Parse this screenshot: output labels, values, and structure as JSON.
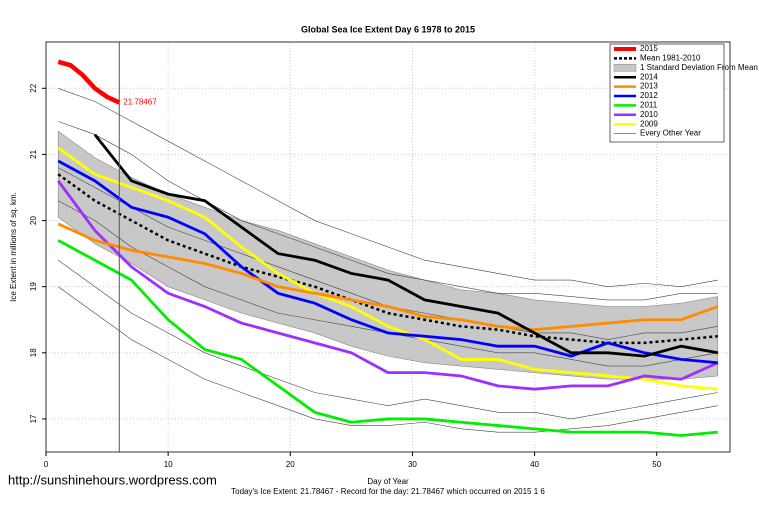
{
  "chart_data": {
    "type": "line",
    "title": "Global Sea Ice Extent Day 6 1978 to 2015",
    "x_label": "Day of Year",
    "y_label": "Ice Extent in millions of sq. km.",
    "footer": "Today's Ice Extent: 21.78467  - Record for the day: 21.78467 which occurred on 2015 1 6",
    "watermark": "http://sunshinehours.wordpress.com",
    "xlim": [
      0,
      56
    ],
    "ylim": [
      16.5,
      22.7
    ],
    "xticks": [
      0,
      10,
      20,
      30,
      40,
      50
    ],
    "yticks": [
      17,
      18,
      19,
      20,
      21,
      22
    ],
    "grid": true,
    "legend": "top-right",
    "vline": 6,
    "x": [
      1,
      4,
      7,
      10,
      13,
      16,
      19,
      22,
      25,
      28,
      31,
      34,
      37,
      40,
      43,
      46,
      49,
      52,
      55
    ],
    "mean": {
      "name": "Mean 1981-2010",
      "color": "#000000",
      "values": [
        20.7,
        20.3,
        20.0,
        19.7,
        19.5,
        19.3,
        19.15,
        19.0,
        18.8,
        18.6,
        18.5,
        18.4,
        18.35,
        18.25,
        18.2,
        18.15,
        18.15,
        18.2,
        18.25
      ]
    },
    "band": {
      "name": "1 Standard Deviation From Mean",
      "color": "#c8c8c8",
      "upper": [
        21.35,
        20.95,
        20.65,
        20.4,
        20.2,
        20.0,
        19.85,
        19.65,
        19.45,
        19.25,
        19.1,
        18.95,
        18.9,
        18.8,
        18.75,
        18.7,
        18.7,
        18.75,
        18.85
      ],
      "lower": [
        20.05,
        19.65,
        19.35,
        19.0,
        18.8,
        18.6,
        18.45,
        18.3,
        18.1,
        17.95,
        17.85,
        17.8,
        17.75,
        17.7,
        17.65,
        17.6,
        17.6,
        17.6,
        17.65
      ]
    },
    "others": {
      "name": "Every Other Year",
      "color": "#444444",
      "lines": [
        [
          22.0,
          21.8,
          21.5,
          21.2,
          20.9,
          20.6,
          20.3,
          20.0,
          19.8,
          19.6,
          19.4,
          19.3,
          19.2,
          19.1,
          19.1,
          19.0,
          19.05,
          19.0,
          19.1
        ],
        [
          21.5,
          21.3,
          21.0,
          20.6,
          20.3,
          20.0,
          19.8,
          19.6,
          19.4,
          19.2,
          19.1,
          19.0,
          18.9,
          18.9,
          18.85,
          18.8,
          18.8,
          18.9,
          18.9
        ],
        [
          19.4,
          19.0,
          18.6,
          18.3,
          18.0,
          17.8,
          17.6,
          17.4,
          17.3,
          17.2,
          17.3,
          17.2,
          17.1,
          17.1,
          17.0,
          17.1,
          17.2,
          17.3,
          17.4
        ],
        [
          20.3,
          20.0,
          19.6,
          19.3,
          19.0,
          18.8,
          18.6,
          18.5,
          18.4,
          18.3,
          18.2,
          18.1,
          18.0,
          18.0,
          17.9,
          17.8,
          17.8,
          17.9,
          18.0
        ],
        [
          20.8,
          20.5,
          20.2,
          19.9,
          19.7,
          19.5,
          19.3,
          19.1,
          18.9,
          18.7,
          18.6,
          18.5,
          18.4,
          18.3,
          18.3,
          18.2,
          18.3,
          18.3,
          18.4
        ],
        [
          19.0,
          18.6,
          18.2,
          17.9,
          17.6,
          17.4,
          17.2,
          17.0,
          16.9,
          16.9,
          16.95,
          16.85,
          16.8,
          16.8,
          16.85,
          16.9,
          17.0,
          17.1,
          17.2
        ]
      ]
    },
    "series": [
      {
        "name": "2015",
        "color": "#ff0000",
        "x": [
          1,
          2,
          3,
          4,
          5,
          6
        ],
        "values": [
          22.4,
          22.35,
          22.2,
          22.0,
          21.87,
          21.78467
        ]
      },
      {
        "name": "2014",
        "color": "#000000",
        "values": [
          null,
          21.3,
          20.6,
          20.4,
          20.3,
          19.9,
          19.5,
          19.4,
          19.2,
          19.1,
          18.8,
          18.7,
          18.6,
          18.3,
          18.0,
          18.0,
          17.95,
          18.1,
          18.0
        ]
      },
      {
        "name": "2013",
        "color": "#ff8c00",
        "values": [
          19.95,
          19.7,
          19.55,
          19.45,
          19.35,
          19.2,
          19.0,
          18.9,
          18.8,
          18.7,
          18.55,
          18.5,
          18.4,
          18.35,
          18.4,
          18.45,
          18.5,
          18.5,
          18.7
        ]
      },
      {
        "name": "2012",
        "color": "#0000ff",
        "values": [
          20.9,
          20.6,
          20.2,
          20.05,
          19.8,
          19.3,
          18.9,
          18.75,
          18.5,
          18.3,
          18.25,
          18.2,
          18.1,
          18.1,
          17.95,
          18.15,
          18.0,
          17.9,
          17.85
        ]
      },
      {
        "name": "2011",
        "color": "#00ee00",
        "values": [
          19.7,
          19.4,
          19.1,
          18.5,
          18.05,
          17.9,
          17.5,
          17.1,
          16.95,
          17.0,
          17.0,
          16.95,
          16.9,
          16.85,
          16.8,
          16.8,
          16.8,
          16.75,
          16.8
        ]
      },
      {
        "name": "2010",
        "color": "#9b30ff",
        "values": [
          20.6,
          19.85,
          19.3,
          18.9,
          18.7,
          18.45,
          18.3,
          18.15,
          18.0,
          17.7,
          17.7,
          17.65,
          17.5,
          17.45,
          17.5,
          17.5,
          17.65,
          17.6,
          17.85
        ]
      },
      {
        "name": "2009",
        "color": "#ffff00",
        "values": [
          21.1,
          20.7,
          20.5,
          20.3,
          20.05,
          19.6,
          19.2,
          18.9,
          18.7,
          18.4,
          18.2,
          17.9,
          17.9,
          17.75,
          17.7,
          17.65,
          17.6,
          17.5,
          17.45
        ]
      }
    ]
  }
}
